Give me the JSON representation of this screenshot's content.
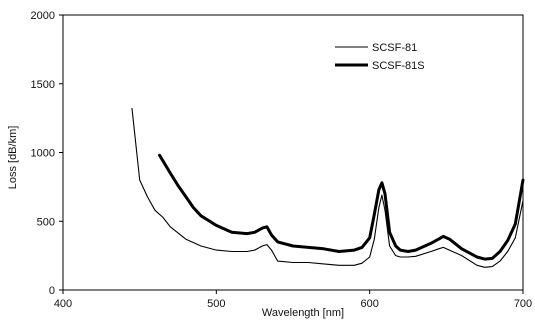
{
  "chart_data": {
    "type": "line",
    "xlabel": "Wavelength [nm]",
    "ylabel": "Loss [dB/km]",
    "xlim": [
      400,
      700
    ],
    "ylim": [
      0,
      2000
    ],
    "xticks": [
      400,
      500,
      600,
      700
    ],
    "yticks": [
      0,
      500,
      1000,
      1500,
      2000
    ],
    "grid": false,
    "legend_position": "top-right",
    "series": [
      {
        "name": "SCSF-81",
        "color": "#000000",
        "style": "thin",
        "x": [
          445,
          450,
          455,
          460,
          465,
          470,
          480,
          490,
          500,
          510,
          520,
          525,
          530,
          533,
          536,
          540,
          550,
          560,
          570,
          580,
          590,
          595,
          600,
          603,
          606,
          608,
          610,
          613,
          617,
          620,
          625,
          630,
          640,
          645,
          648,
          652,
          660,
          670,
          675,
          680,
          685,
          690,
          695,
          700
        ],
        "y": [
          1320,
          800,
          680,
          580,
          530,
          460,
          370,
          320,
          290,
          280,
          280,
          290,
          320,
          330,
          290,
          210,
          200,
          200,
          190,
          180,
          180,
          195,
          240,
          370,
          600,
          690,
          580,
          320,
          250,
          240,
          240,
          245,
          280,
          300,
          310,
          290,
          250,
          180,
          165,
          170,
          210,
          280,
          380,
          650
        ]
      },
      {
        "name": "SCSF-81S",
        "color": "#000000",
        "style": "thick",
        "x": [
          463,
          470,
          475,
          480,
          485,
          490,
          500,
          510,
          520,
          525,
          530,
          533,
          536,
          540,
          550,
          560,
          570,
          580,
          590,
          595,
          600,
          603,
          606,
          608,
          610,
          613,
          617,
          620,
          625,
          630,
          640,
          645,
          648,
          652,
          660,
          670,
          675,
          680,
          685,
          690,
          695,
          700
        ],
        "y": [
          980,
          850,
          760,
          680,
          600,
          540,
          470,
          420,
          410,
          420,
          450,
          460,
          400,
          350,
          320,
          310,
          300,
          280,
          290,
          310,
          380,
          550,
          730,
          780,
          700,
          420,
          320,
          290,
          280,
          290,
          340,
          370,
          390,
          370,
          300,
          240,
          225,
          230,
          280,
          360,
          480,
          800
        ]
      }
    ]
  }
}
